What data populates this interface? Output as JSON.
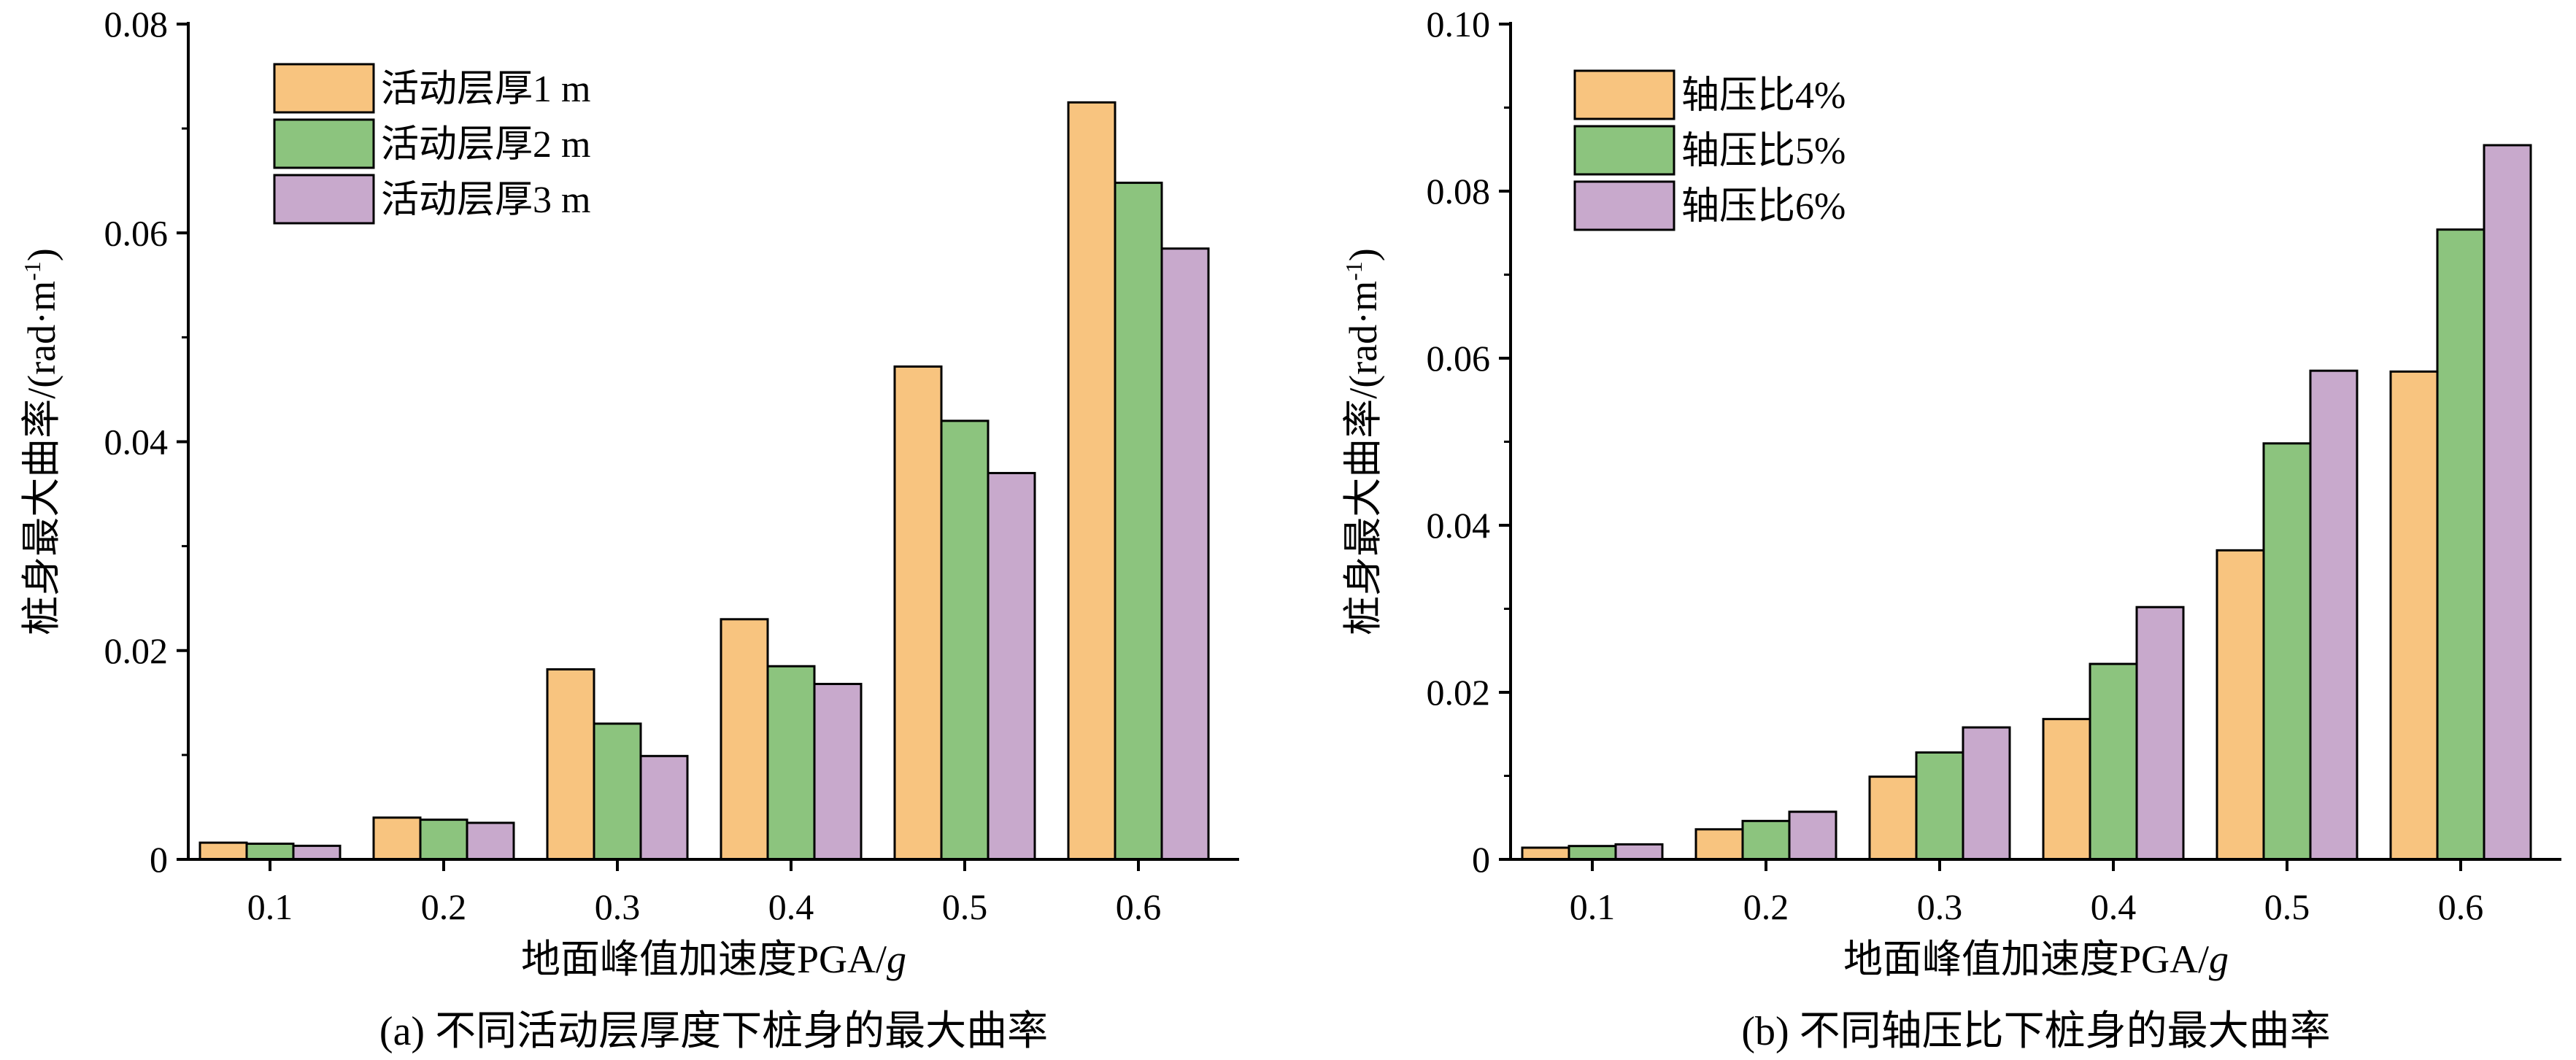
{
  "chart_data": [
    {
      "type": "bar",
      "caption": "(a) 不同活动层厚度下桩身的最大曲率",
      "xlabel_prefix": "地面峰值加速度PGA/",
      "xlabel_italic": "g",
      "ylabel": "桩身最大曲率/(rad·m",
      "ylabel_sup": "-1",
      "ylabel_close": ")",
      "categories": [
        "0.1",
        "0.2",
        "0.3",
        "0.4",
        "0.5",
        "0.6"
      ],
      "ylim": [
        0,
        0.08
      ],
      "yticks": [
        0,
        0.02,
        0.04,
        0.06,
        0.08
      ],
      "ytick_labels": [
        "0",
        "0.02",
        "0.04",
        "0.06",
        "0.08"
      ],
      "legend_position": "top-left",
      "series": [
        {
          "name": "活动层厚1 m",
          "color": "#F8C47F",
          "values": [
            0.0016,
            0.004,
            0.0182,
            0.023,
            0.0472,
            0.0725
          ]
        },
        {
          "name": "活动层厚2 m",
          "color": "#8CC47E",
          "values": [
            0.0015,
            0.0038,
            0.013,
            0.0185,
            0.042,
            0.0648
          ]
        },
        {
          "name": "活动层厚3 m",
          "color": "#C8A9CC",
          "values": [
            0.0013,
            0.0035,
            0.0099,
            0.0168,
            0.037,
            0.0585
          ]
        }
      ]
    },
    {
      "type": "bar",
      "caption": "(b) 不同轴压比下桩身的最大曲率",
      "xlabel_prefix": "地面峰值加速度PGA/",
      "xlabel_italic": "g",
      "ylabel": "桩身最大曲率/(rad·m",
      "ylabel_sup": "-1",
      "ylabel_close": ")",
      "categories": [
        "0.1",
        "0.2",
        "0.3",
        "0.4",
        "0.5",
        "0.6"
      ],
      "ylim": [
        0,
        0.1
      ],
      "yticks": [
        0,
        0.02,
        0.04,
        0.06,
        0.08,
        0.1
      ],
      "ytick_labels": [
        "0",
        "0.02",
        "0.04",
        "0.06",
        "0.08",
        "0.10"
      ],
      "legend_position": "top-left",
      "series": [
        {
          "name": "轴压比4%",
          "color": "#F8C47F",
          "values": [
            0.0014,
            0.0036,
            0.0099,
            0.0168,
            0.037,
            0.0584
          ]
        },
        {
          "name": "轴压比5%",
          "color": "#8CC47E",
          "values": [
            0.0016,
            0.0046,
            0.0128,
            0.0234,
            0.0498,
            0.0754
          ]
        },
        {
          "name": "轴压比6%",
          "color": "#C8A9CC",
          "values": [
            0.0018,
            0.0057,
            0.0158,
            0.0302,
            0.0585,
            0.0855
          ]
        }
      ]
    }
  ]
}
